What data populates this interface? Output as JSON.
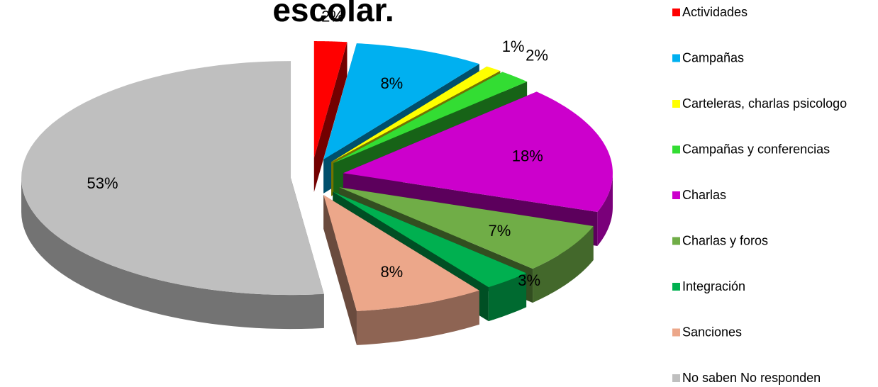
{
  "chart_data": {
    "type": "pie",
    "title": "escolar.",
    "categories": [
      "Actividades",
      "Campañas",
      "Carteleras, charlas psicologo",
      "Campañas y conferencias",
      "Charlas",
      "Charlas y foros",
      "Integración",
      "Sanciones",
      "No saben No responden"
    ],
    "values": [
      2,
      8,
      1,
      2,
      18,
      7,
      3,
      8,
      53
    ],
    "value_labels": [
      "2%",
      "8%",
      "1%",
      "2%",
      "18%",
      "7%",
      "3%",
      "8%",
      "53%"
    ],
    "colors": [
      "#ff0000",
      "#00b0f0",
      "#ffff00",
      "#33dd33",
      "#cc00cc",
      "#70ad47",
      "#00b050",
      "#eca78a",
      "#bfbfbf"
    ],
    "legend": "right"
  }
}
